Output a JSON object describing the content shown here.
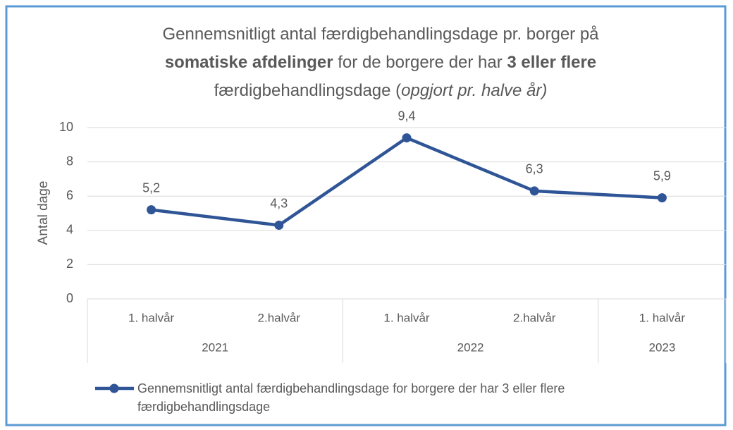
{
  "chart_data": {
    "type": "line",
    "title_lines": [
      [
        {
          "text": "Gennemsnitligt antal færdigbehandlingsdage pr. borger på"
        }
      ],
      [
        {
          "text": "somatiske afdelinger",
          "bold": true
        },
        {
          "text": " for de borgere der har "
        },
        {
          "text": "3 eller flere",
          "bold": true
        }
      ],
      [
        {
          "text": "færdigbehandlingsdage ("
        },
        {
          "text": "opgjort pr. halve år)",
          "italic": true
        }
      ]
    ],
    "y_label": "Antal dage",
    "categories": [
      "1. halvår",
      "2.halvår",
      "1. halvår",
      "2.halvår",
      "1. halvår"
    ],
    "groups": [
      {
        "label": "2021",
        "span": 2
      },
      {
        "label": "2022",
        "span": 2
      },
      {
        "label": "2023",
        "span": 1
      }
    ],
    "series": [
      {
        "name": "Gennemsnitligt antal færdigbehandlingsdage for borgere der har 3 eller flere færdigbehandlingsdage",
        "color": "#2f5597",
        "values": [
          5.2,
          4.3,
          9.4,
          6.3,
          5.9
        ],
        "value_labels": [
          "5,2",
          "4,3",
          "9,4",
          "6,3",
          "5,9"
        ]
      }
    ],
    "ylim": [
      0,
      10
    ],
    "yticks": [
      0,
      2,
      4,
      6,
      8,
      10
    ],
    "grid": true,
    "legend": "bottom"
  }
}
